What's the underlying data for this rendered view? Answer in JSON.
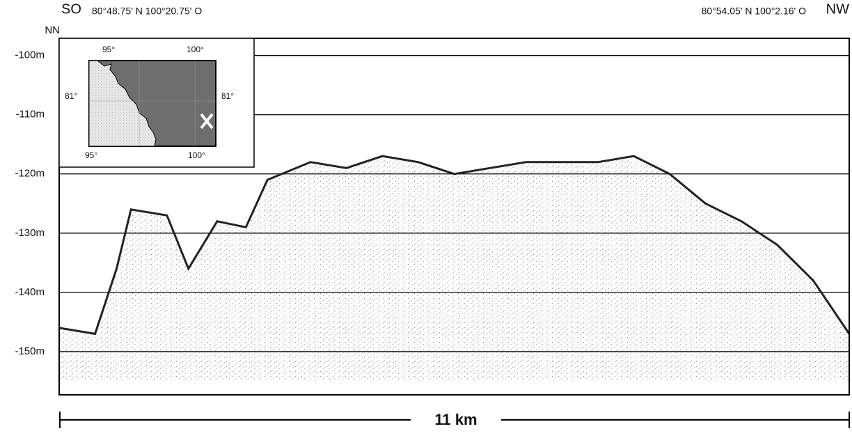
{
  "header": {
    "left_direction": "SO",
    "left_coords": "80°48.75' N 100°20.75' O",
    "right_coords": "80°54.05' N 100°2.16' O",
    "right_direction": "NW"
  },
  "chart_data": {
    "type": "line",
    "ylabel": "NN",
    "x": [
      0,
      0.5,
      0.8,
      1.0,
      1.5,
      1.8,
      2.2,
      2.6,
      2.9,
      3.5,
      4.0,
      4.5,
      5.0,
      5.5,
      6.0,
      6.5,
      7.0,
      7.5,
      8.0,
      8.5,
      9.0,
      9.5,
      10.0,
      10.5,
      11.0
    ],
    "values": [
      -146,
      -147,
      -136,
      -126,
      -127,
      -136,
      -128,
      -129,
      -121,
      -118,
      -119,
      -117,
      -118,
      -120,
      -119,
      -118,
      -118,
      -118,
      -117,
      -120,
      -125,
      -128,
      -132,
      -138,
      -147
    ],
    "color": "#222222",
    "xlim": [
      0,
      11
    ],
    "ylim": [
      -157.3,
      -97.1
    ],
    "yticks": [
      {
        "value": -100,
        "label": "-100m"
      },
      {
        "value": -110,
        "label": "-110m"
      },
      {
        "value": -120,
        "label": "-120m"
      },
      {
        "value": -130,
        "label": "-130m"
      },
      {
        "value": -140,
        "label": "-140m"
      },
      {
        "value": -150,
        "label": "-150m"
      }
    ],
    "grid": true,
    "scale_bar": {
      "label": "11 km"
    }
  },
  "inset": {
    "top_left": "95°",
    "top_right": "100°",
    "left": "81°",
    "right": "81°",
    "bottom_left": "95°",
    "bottom_right": "100°"
  }
}
